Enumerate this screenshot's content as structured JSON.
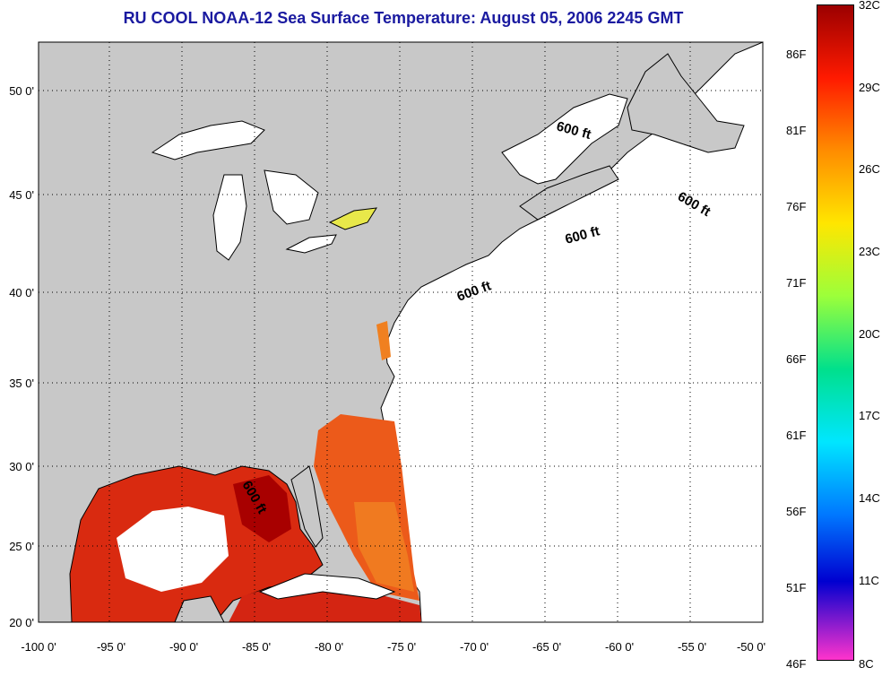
{
  "title": "RU COOL  NOAA-12  Sea Surface Temperature:  August 05, 2006 2245 GMT",
  "map": {
    "lon_ticks": [
      "-100 0'",
      "-95 0'",
      "-90 0'",
      "-85 0'",
      "-80 0'",
      "-75 0'",
      "-70 0'",
      "-65 0'",
      "-60 0'",
      "-55 0'",
      "-50 0'"
    ],
    "lat_ticks": [
      "50 0'",
      "45 0'",
      "40 0'",
      "35 0'",
      "30 0'",
      "25 0'",
      "20 0'"
    ],
    "contour_labels": [
      "600 ft",
      "600 ft",
      "600 ft",
      "600 ft",
      "600 ft"
    ],
    "land_color": "#c8c8c8",
    "ocean_color": "#ffffff"
  },
  "colorbar": {
    "celsius_labels": [
      "32C",
      "29C",
      "26C",
      "23C",
      "20C",
      "17C",
      "14C",
      "11C",
      "8C"
    ],
    "fahrenheit_labels": [
      "86F",
      "81F",
      "76F",
      "71F",
      "66F",
      "61F",
      "56F",
      "51F",
      "46F"
    ],
    "gradient_colors": [
      "#9b0000",
      "#ff1a00",
      "#ff8c00",
      "#ffe600",
      "#9cff3a",
      "#00e08c",
      "#00e6ff",
      "#0078ff",
      "#0000d0",
      "#ff33cc"
    ]
  }
}
